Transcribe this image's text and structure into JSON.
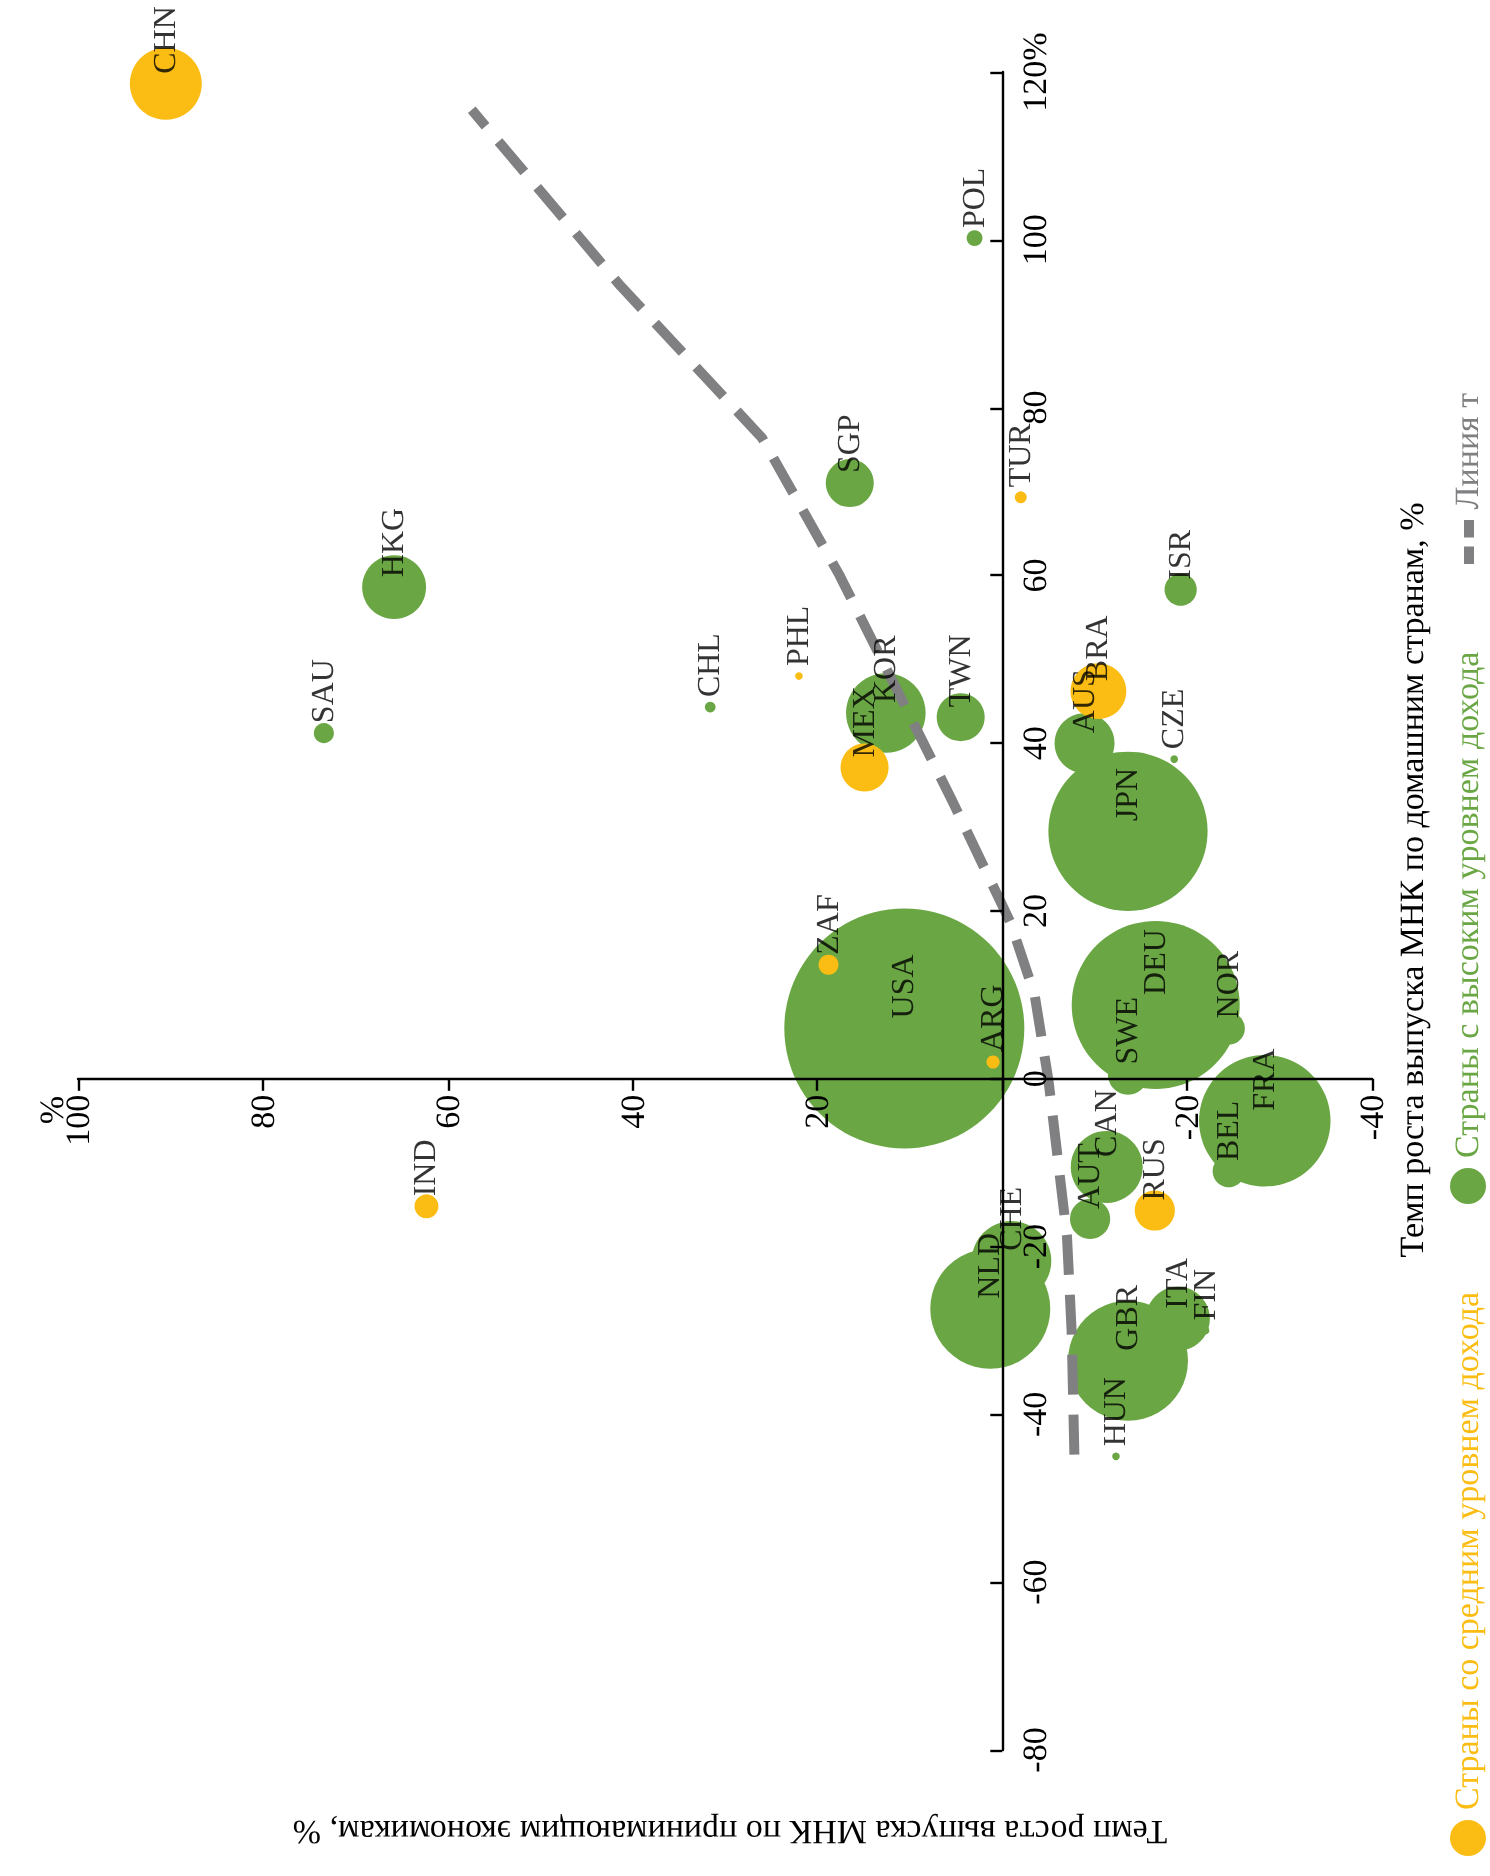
{
  "chart_data": {
    "type": "bubble",
    "xlabel": "Темп роста выпуска МНК по принимающим экономикам, %",
    "ylabel": "Темп роста выпуска МНК по домашним странам, %",
    "xlim": [
      100,
      -40
    ],
    "xticks": [
      100,
      80,
      60,
      40,
      20,
      {
        "value": 0,
        "label": null
      },
      -20,
      -40
    ],
    "ylim": [
      -80,
      120
    ],
    "yticks": [
      -80,
      -60,
      -40,
      -20,
      0,
      20,
      40,
      60,
      80,
      100,
      {
        "value": 120,
        "label": "120%"
      }
    ],
    "grid": false,
    "legend": "right",
    "series": [
      {
        "name": "Страны со средним уровнем дохода",
        "color": "#fbbd13",
        "x": [
          90.5,
          -2,
          -10.4,
          14.9,
          18.8,
          -16.5,
          62.3,
          22,
          1
        ],
        "values": [
          118.6,
          69.3,
          46.2,
          37.1,
          13.6,
          -15.7,
          -15.2,
          48,
          2
        ],
        "sizes": [
          0.09,
          0.0025,
          0.054,
          0.04,
          0.007,
          0.028,
          0.01,
          0.001,
          0.003
        ]
      },
      {
        "name": "Страны с высоким уровнем дохода",
        "color": "#6aa744",
        "x": [
          3,
          16.5,
          65.8,
          -19.3,
          73.4,
          31.6,
          12.6,
          4.5,
          -8.9,
          -18.6,
          -13.6,
          10.6,
          -16.6,
          -24.5,
          -13.6,
          -28.4,
          -24.5,
          -11.3,
          -9.5,
          -1,
          1.3,
          -13.6,
          -19,
          -12.3,
          -22
        ],
        "values": [
          100.2,
          71,
          58.6,
          58.3,
          41.2,
          44.3,
          43.6,
          43.1,
          40,
          38.1,
          29.5,
          6,
          8.8,
          6,
          0.5,
          -5,
          -11,
          -10.5,
          -16.7,
          -21.7,
          -27.4,
          -33.6,
          -28.6,
          -45,
          -30
        ],
        "sizes": [
          0.0044,
          0.04,
          0.071,
          0.018,
          0.007,
          0.002,
          0.11,
          0.04,
          0.0625,
          0.001,
          0.44,
          1,
          0.49,
          0.018,
          0.028,
          0.3,
          0.018,
          0.09,
          0.028,
          0.11,
          0.25,
          0.25,
          0.071,
          0.001,
          0.001
        ]
      },
      {
        "name": "Линия т",
        "type": "line",
        "color": "#808083",
        "line_style": "dashed",
        "marker": "none",
        "x": [
          -7.8,
          -7.5,
          -7,
          -5,
          -3.5,
          -0.9,
          5.4,
          12.6,
          17.6,
          26,
          41.3,
          57.4
        ],
        "values": [
          -44.8,
          -30,
          -18.8,
          -0.2,
          10,
          18.6,
          33.1,
          49,
          60,
          76.4,
          94.5,
          115.5
        ]
      }
    ],
    "annotations": [
      "%",
      {
        "text": "CHN",
        "x": 90.5,
        "y": 118.6
      },
      {
        "text": "TUR",
        "x": -2,
        "y": 69.3
      },
      {
        "text": "BRA",
        "x": -10.4,
        "y": 46.2
      },
      {
        "text": "MEX",
        "x": 14.9,
        "y": 37.1
      },
      {
        "text": "ZAF",
        "x": 18.8,
        "y": 13.6
      },
      {
        "text": "RUS",
        "x": -16.5,
        "y": -15.7
      },
      {
        "text": "IND",
        "x": 62.3,
        "y": -15.2
      },
      {
        "text": "PHL",
        "x": 22,
        "y": 48
      },
      {
        "text": "ARG",
        "x": 1,
        "y": 2
      },
      {
        "text": "POL",
        "x": 3,
        "y": 100.2
      },
      {
        "text": "SGP",
        "x": 16.5,
        "y": 71
      },
      {
        "text": "HKG",
        "x": 65.8,
        "y": 58.6
      },
      {
        "text": "ISR",
        "x": -19.3,
        "y": 58.3
      },
      {
        "text": "SAU",
        "x": 73.4,
        "y": 41.2
      },
      {
        "text": "CHL",
        "x": 31.6,
        "y": 44.3
      },
      {
        "text": "KOR",
        "x": 12.6,
        "y": 43.6
      },
      {
        "text": "TWN",
        "x": 4.5,
        "y": 43.1
      },
      {
        "text": "AUS",
        "x": -8.9,
        "y": 40
      },
      {
        "text": "CZE",
        "x": -18.6,
        "y": 38.1
      },
      {
        "text": "JPN",
        "x": -13.6,
        "y": 29.5
      },
      {
        "text": "USA",
        "x": 10.6,
        "y": 6
      },
      {
        "text": "DEU",
        "x": -16.6,
        "y": 8.8
      },
      {
        "text": "NOR",
        "x": -24.5,
        "y": 6
      },
      {
        "text": "SWE",
        "x": -13.6,
        "y": 0.5
      },
      {
        "text": "FRA",
        "x": -28.4,
        "y": -5
      },
      {
        "text": "BEL",
        "x": -24.5,
        "y": -11
      },
      {
        "text": "CAN",
        "x": -11.3,
        "y": -10.5
      },
      {
        "text": "AUT",
        "x": -9.5,
        "y": -16.7
      },
      {
        "text": "CHE",
        "x": -1,
        "y": -21.7
      },
      {
        "text": "NLD",
        "x": 1.3,
        "y": -27.4
      },
      {
        "text": "GBR",
        "x": -13.6,
        "y": -33.6
      },
      {
        "text": "ITA",
        "x": -19,
        "y": -28.6
      },
      {
        "text": "HUN",
        "x": -12.3,
        "y": -45
      },
      {
        "text": "FIN",
        "x": -22,
        "y": -30
      }
    ]
  }
}
